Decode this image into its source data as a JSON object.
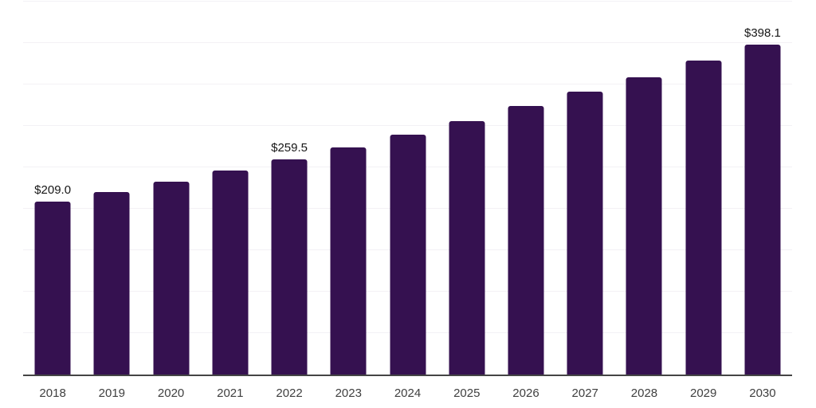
{
  "chart_data": {
    "type": "bar",
    "title": "",
    "xlabel": "",
    "ylabel": "",
    "categories": [
      "2018",
      "2019",
      "2020",
      "2021",
      "2022",
      "2023",
      "2024",
      "2025",
      "2026",
      "2027",
      "2028",
      "2029",
      "2030"
    ],
    "values": [
      209.0,
      220.5,
      232.7,
      246.2,
      259.5,
      274.4,
      289.1,
      305.8,
      323.8,
      341.1,
      358.7,
      379.1,
      398.1
    ],
    "data_labels": [
      "$209.0",
      "",
      "",
      "",
      "$259.5",
      "",
      "",
      "",
      "",
      "",
      "",
      "",
      "$398.1"
    ],
    "ylim": [
      0,
      452
    ],
    "gridline_step": 50,
    "grid": true,
    "legend": false,
    "y_axis_ticks_visible": false,
    "bar_color": "#351150",
    "gridline_color": "#f3f1f5",
    "axis_line_color": "#454545",
    "value_label_color": "#161616",
    "tick_label_color": "#3f3f3f"
  }
}
